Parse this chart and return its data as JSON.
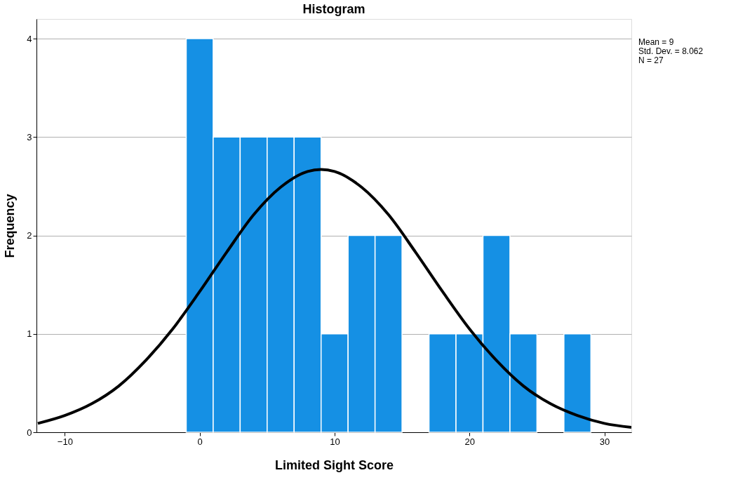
{
  "chart_data": {
    "type": "histogram",
    "title": "Histogram",
    "xlabel": "Limited Sight Score",
    "ylabel": "Frequency",
    "bins": [
      -1,
      1,
      3,
      5,
      7,
      9,
      11,
      13,
      15,
      17,
      19,
      21,
      23,
      25,
      27,
      29
    ],
    "values": [
      4,
      3,
      3,
      3,
      3,
      1,
      2,
      2,
      0,
      1,
      1,
      2,
      1,
      0,
      1
    ],
    "color": "#1590e4",
    "series": [
      {
        "type": "line",
        "color": "#000000",
        "x": [
          -12,
          -10,
          -8,
          -6,
          -4,
          -2,
          0,
          2,
          4,
          6,
          8,
          9,
          10,
          12,
          14,
          16,
          18,
          20,
          22,
          24,
          26,
          28,
          30,
          32
        ],
        "values": [
          0.09,
          0.17,
          0.29,
          0.47,
          0.73,
          1.05,
          1.43,
          1.83,
          2.21,
          2.49,
          2.65,
          2.67,
          2.65,
          2.49,
          2.21,
          1.83,
          1.43,
          1.05,
          0.73,
          0.47,
          0.29,
          0.17,
          0.09,
          0.05
        ]
      }
    ],
    "xlim": [
      -12.1,
      32
    ],
    "xticks": [
      -10,
      0,
      10,
      20,
      30
    ],
    "ylim": [
      0,
      4.2
    ],
    "yticks": [
      0,
      1,
      2,
      3,
      4
    ],
    "grid": "y",
    "annotations": [
      "Mean = 9",
      "Std. Dev. = 8.062",
      "N = 27"
    ]
  }
}
